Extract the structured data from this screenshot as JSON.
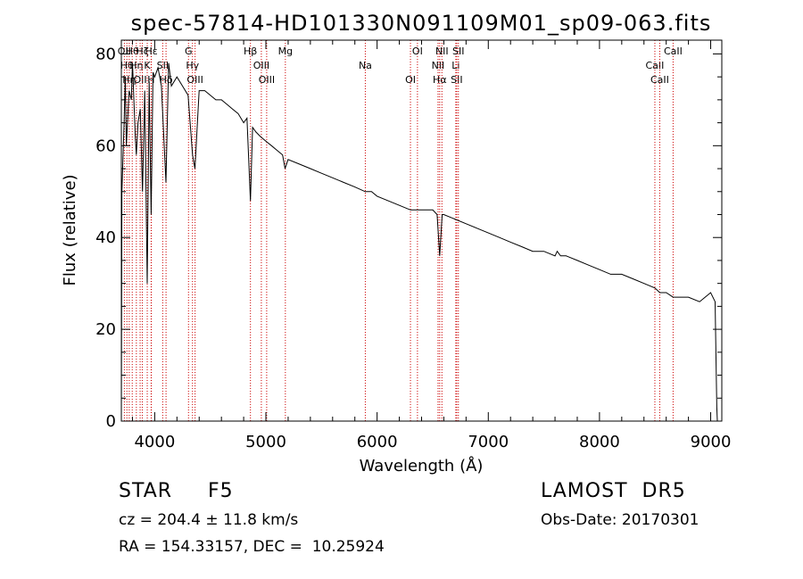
{
  "chart_data": {
    "type": "line",
    "title": "spec-57814-HD101330N091109M01_sp09-063.fits",
    "xlabel": "Wavelength (Å)",
    "ylabel": "Flux (relative)",
    "xlim": [
      3700,
      9100
    ],
    "ylim": [
      0,
      83
    ],
    "xticks": [
      4000,
      5000,
      6000,
      7000,
      8000,
      9000
    ],
    "yticks": [
      0,
      20,
      40,
      60,
      80
    ],
    "grid": false,
    "series": [
      {
        "color": "#000000",
        "x": [
          3700,
          3705,
          3725,
          3735,
          3745,
          3770,
          3790,
          3800,
          3825,
          3835,
          3850,
          3870,
          3890,
          3910,
          3933,
          3950,
          3968,
          3985,
          4000,
          4030,
          4060,
          4101,
          4125,
          4150,
          4200,
          4250,
          4300,
          4340,
          4362,
          4400,
          4450,
          4500,
          4550,
          4600,
          4650,
          4700,
          4750,
          4800,
          4830,
          4861,
          4880,
          4910,
          4950,
          5000,
          5050,
          5100,
          5150,
          5172,
          5200,
          5300,
          5400,
          5500,
          5600,
          5700,
          5800,
          5893,
          5950,
          6000,
          6100,
          6200,
          6300,
          6400,
          6500,
          6540,
          6563,
          6585,
          6600,
          6700,
          6800,
          6900,
          7000,
          7100,
          7200,
          7300,
          7400,
          7500,
          7600,
          7620,
          7650,
          7700,
          7800,
          7900,
          8000,
          8100,
          8200,
          8300,
          8400,
          8498,
          8542,
          8600,
          8662,
          8700,
          8800,
          8900,
          8950,
          9000,
          9040,
          9050,
          9055,
          9060
        ],
        "y": [
          0,
          50,
          65,
          75,
          60,
          72,
          70,
          78,
          62,
          58,
          65,
          68,
          50,
          72,
          30,
          74,
          45,
          76,
          75,
          77,
          73,
          52,
          78,
          73,
          75,
          73,
          71,
          58,
          55,
          72,
          72,
          71,
          70,
          70,
          69,
          68,
          67,
          65,
          66,
          48,
          64,
          63,
          62,
          61,
          60,
          59,
          58,
          55,
          57,
          56,
          55,
          54,
          53,
          52,
          51,
          50,
          50,
          49,
          48,
          47,
          46,
          46,
          46,
          45,
          36,
          45,
          45,
          44,
          43,
          42,
          41,
          40,
          39,
          38,
          37,
          37,
          36,
          37,
          36,
          36,
          35,
          34,
          33,
          32,
          32,
          31,
          30,
          29,
          28,
          28,
          27,
          27,
          27,
          26,
          27,
          28,
          26,
          10,
          3,
          0
        ]
      }
    ],
    "lines": [
      {
        "wave": 3727,
        "labels": [
          "OII"
        ]
      },
      {
        "wave": 3750,
        "labels": [
          "Hθ"
        ]
      },
      {
        "wave": 3771,
        "labels": [
          "Hη"
        ]
      },
      {
        "wave": 3798,
        "labels": [
          "Hθ"
        ]
      },
      {
        "wave": 3835,
        "labels": [
          "Hη"
        ]
      },
      {
        "wave": 3869,
        "labels": [
          "OII"
        ]
      },
      {
        "wave": 3889,
        "labels": [
          "Hζ"
        ]
      },
      {
        "wave": 3933,
        "labels": [
          "K"
        ]
      },
      {
        "wave": 3968,
        "labels": [
          "H"
        ]
      },
      {
        "wave": 3970,
        "labels": [
          "Hε"
        ]
      },
      {
        "wave": 4072,
        "labels": [
          "SII"
        ]
      },
      {
        "wave": 4102,
        "labels": [
          "Hδ"
        ]
      },
      {
        "wave": 4304,
        "labels": [
          "G"
        ]
      },
      {
        "wave": 4340,
        "labels": [
          "Hγ"
        ]
      },
      {
        "wave": 4363,
        "labels": [
          "OIII"
        ]
      },
      {
        "wave": 4861,
        "labels": [
          "Hβ"
        ]
      },
      {
        "wave": 4959,
        "labels": [
          "OIII"
        ]
      },
      {
        "wave": 5007,
        "labels": [
          "OIII"
        ]
      },
      {
        "wave": 5175,
        "labels": [
          "Mg"
        ]
      },
      {
        "wave": 5894,
        "labels": [
          "Na"
        ]
      },
      {
        "wave": 6300,
        "labels": [
          "OI"
        ]
      },
      {
        "wave": 6363,
        "labels": [
          "OI"
        ]
      },
      {
        "wave": 6548,
        "labels": [
          "NII"
        ]
      },
      {
        "wave": 6563,
        "labels": [
          "Hα"
        ]
      },
      {
        "wave": 6583,
        "labels": [
          "NII"
        ]
      },
      {
        "wave": 6708,
        "labels": [
          "Li"
        ]
      },
      {
        "wave": 6716,
        "labels": [
          "SII"
        ]
      },
      {
        "wave": 6731,
        "labels": [
          "SII"
        ]
      },
      {
        "wave": 8498,
        "labels": [
          "CaII"
        ]
      },
      {
        "wave": 8542,
        "labels": [
          "CaII"
        ]
      },
      {
        "wave": 8662,
        "labels": [
          "CaII"
        ]
      }
    ]
  },
  "info": {
    "object_class": "STAR     F5",
    "survey": "LAMOST  DR5",
    "cz": "cz = 204.4 ± 11.8 km/s",
    "obs_date": "Obs-Date: 20170301",
    "radec": "RA = 154.33157, DEC =  10.25924"
  },
  "colors": {
    "line": "#000000",
    "marker_lines": "#cc0000",
    "axes": "#000000"
  }
}
